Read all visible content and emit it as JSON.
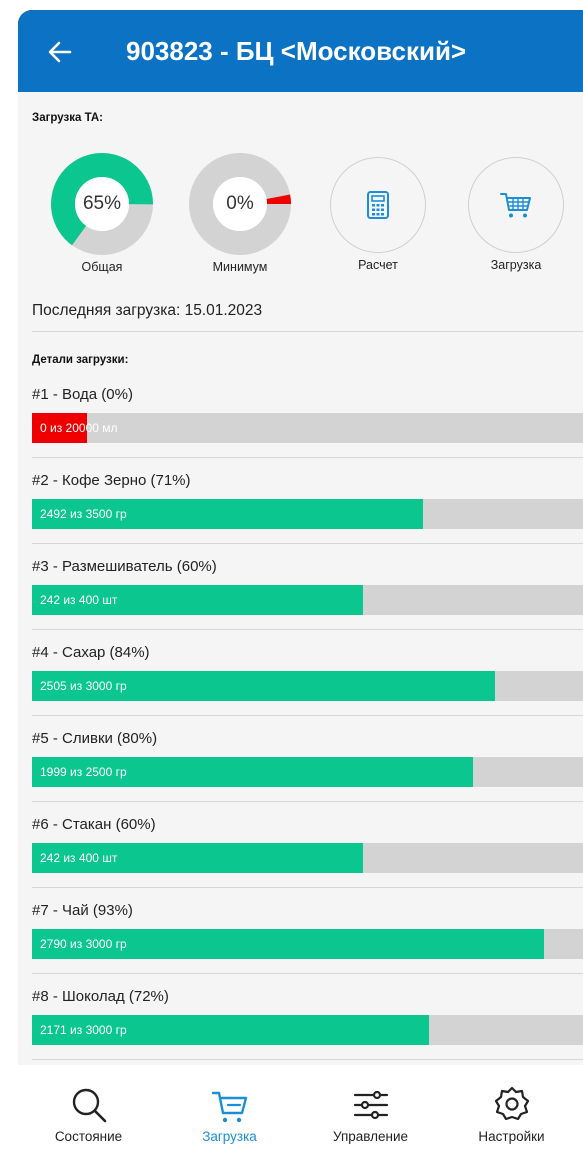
{
  "header": {
    "title": "903823 - БЦ <Московский>"
  },
  "load_section": {
    "label": "Загрузка ТА:",
    "overall": {
      "value_text": "65%",
      "percent": 65,
      "caption": "Общая"
    },
    "minimum": {
      "value_text": "0%",
      "percent": 3,
      "caption": "Минимум"
    },
    "calc_caption": "Расчет",
    "load_caption": "Загрузка",
    "last_load": "Последняя загрузка: 15.01.2023"
  },
  "details": {
    "label": "Детали загрузки:",
    "items": [
      {
        "label": "#1 - Вода (0%)",
        "bar_text": "0 из 20000 мл",
        "percent": 10,
        "color": "#ee0000"
      },
      {
        "label": "#2 - Кофе Зерно (71%)",
        "bar_text": "2492 из 3500 гр",
        "percent": 71,
        "color": "#0cc68f"
      },
      {
        "label": "#3 - Размешиватель (60%)",
        "bar_text": "242 из 400 шт",
        "percent": 60,
        "color": "#0cc68f"
      },
      {
        "label": "#4 - Сахар (84%)",
        "bar_text": "2505 из 3000 гр",
        "percent": 84,
        "color": "#0cc68f"
      },
      {
        "label": "#5 - Сливки (80%)",
        "bar_text": "1999 из 2500 гр",
        "percent": 80,
        "color": "#0cc68f"
      },
      {
        "label": "#6 - Стакан (60%)",
        "bar_text": "242 из 400 шт",
        "percent": 60,
        "color": "#0cc68f"
      },
      {
        "label": "#7 - Чай (93%)",
        "bar_text": "2790 из 3000 гр",
        "percent": 93,
        "color": "#0cc68f"
      },
      {
        "label": "#8 - Шоколад (72%)",
        "bar_text": "2171 из 3000 гр",
        "percent": 72,
        "color": "#0cc68f"
      }
    ]
  },
  "nav": {
    "status": "Состояние",
    "load": "Загрузка",
    "control": "Управление",
    "settings": "Настройки"
  },
  "colors": {
    "header": "#0c73c4",
    "accent_green": "#0cc68f",
    "alert_red": "#ee0000",
    "track_gray": "#d3d3d3",
    "active_nav": "#1a8fd6"
  },
  "icons": {
    "back": "arrow-left-icon",
    "calc": "calculator-icon",
    "cart": "cart-icon",
    "search": "search-icon",
    "sliders": "sliders-icon",
    "gear": "gear-icon"
  }
}
